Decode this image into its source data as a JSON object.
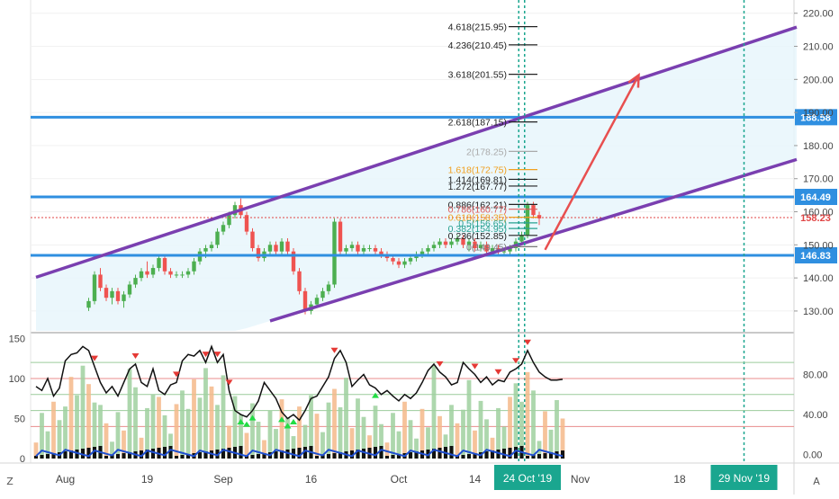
{
  "chart_data": {
    "type": "candlestick",
    "main_y_range": [
      124,
      224
    ],
    "price_ticks": [
      "220.00",
      "210.00",
      "200.00",
      "190.00",
      "180.00",
      "170.00",
      "160.00",
      "150.00",
      "140.00",
      "130.00"
    ],
    "x_labels": [
      {
        "label": "Aug",
        "day": 5
      },
      {
        "label": "19",
        "day": 19
      },
      {
        "label": "Sep",
        "day": 32
      },
      {
        "label": "16",
        "day": 47
      },
      {
        "label": "Oct",
        "day": 62
      },
      {
        "label": "14",
        "day": 75
      },
      {
        "label": "Nov",
        "day": 93
      },
      {
        "label": "18",
        "day": 110
      },
      {
        "label": "29 Nov '19",
        "day": 121,
        "highlight": true
      },
      {
        "label": "24 Oct '19",
        "day": 84,
        "highlight": true
      }
    ],
    "horizontal_lines": [
      {
        "price": 188.58,
        "label": "188.58",
        "color": "#2f8fe0"
      },
      {
        "price": 164.49,
        "label": "164.49",
        "color": "#2f8fe0"
      },
      {
        "price": 146.83,
        "label": "146.83",
        "color": "#2f8fe0"
      }
    ],
    "last_price": {
      "price": 158.23,
      "label": "158.23",
      "color": "#e04545"
    },
    "channel": {
      "upper": [
        [
          0,
          140.2
        ],
        [
          130,
          215.8
        ]
      ],
      "lower": [
        [
          40,
          127.0
        ],
        [
          130,
          175.8
        ]
      ],
      "color": "#7a3fb0"
    },
    "projection_arrow": {
      "from": [
        87,
        148.5
      ],
      "to": [
        103,
        201.3
      ],
      "color": "#e84f4f"
    },
    "vertical_lines": [
      {
        "day": 82.5,
        "color": "#1aa68f"
      },
      {
        "day": 83.5,
        "color": "#1aa68f"
      },
      {
        "day": 121,
        "color": "#1aa68f"
      }
    ],
    "fib_levels": [
      {
        "label": "4.618(215.95)",
        "price": 215.95,
        "color": "#222222"
      },
      {
        "label": "4.236(210.45)",
        "price": 210.45,
        "color": "#222222"
      },
      {
        "label": "3.618(201.55)",
        "price": 201.55,
        "color": "#222222"
      },
      {
        "label": "2.618(187.15)",
        "price": 187.15,
        "color": "#222222"
      },
      {
        "label": "2(178.25)",
        "price": 178.25,
        "color": "#aaaaaa"
      },
      {
        "label": "1.618(172.75)",
        "price": 172.75,
        "color": "#f0a020"
      },
      {
        "label": "1.414(169.81)",
        "price": 169.81,
        "color": "#222222"
      },
      {
        "label": "1.272(167.77)",
        "price": 167.77,
        "color": "#222222"
      },
      {
        "label": "0.886(162.21)",
        "price": 162.21,
        "color": "#222222"
      },
      {
        "label": "0.786(160.77)",
        "price": 160.77,
        "color": "#e05a5a"
      },
      {
        "label": "0.618(158.35)",
        "price": 158.35,
        "color": "#f0a020"
      },
      {
        "label": "0.5(156.65)",
        "price": 156.65,
        "color": "#27a090"
      },
      {
        "label": "0.382(154.95)",
        "price": 154.95,
        "color": "#27a090"
      },
      {
        "label": "0.236(152.85)",
        "price": 152.85,
        "color": "#222222"
      },
      {
        "label": "0(149.45)",
        "price": 149.45,
        "color": "#777777"
      }
    ],
    "candles": [
      [
        9,
        131,
        134,
        130,
        133
      ],
      [
        10,
        133,
        142,
        132,
        141
      ],
      [
        11,
        141,
        143,
        136,
        137
      ],
      [
        12,
        137,
        138,
        133,
        134
      ],
      [
        13,
        134,
        137,
        132,
        136
      ],
      [
        14,
        136,
        137,
        132,
        133
      ],
      [
        15,
        133,
        136,
        131,
        135
      ],
      [
        16,
        135,
        139,
        134,
        138
      ],
      [
        17,
        138,
        141,
        137,
        140
      ],
      [
        18,
        140,
        143,
        139,
        142
      ],
      [
        19,
        142,
        145,
        140,
        141
      ],
      [
        20,
        141,
        144,
        140,
        143
      ],
      [
        21,
        143,
        147,
        142,
        146
      ],
      [
        22,
        146,
        147,
        141,
        142
      ],
      [
        23,
        142,
        143,
        140,
        141
      ],
      [
        24,
        141,
        142,
        140,
        141
      ],
      [
        25,
        141,
        142,
        140,
        141
      ],
      [
        26,
        141,
        143,
        140,
        142
      ],
      [
        27,
        142,
        146,
        141,
        145
      ],
      [
        28,
        145,
        149,
        144,
        148
      ],
      [
        29,
        148,
        150,
        146,
        149
      ],
      [
        30,
        149,
        151,
        148,
        150
      ],
      [
        31,
        150,
        155,
        149,
        154
      ],
      [
        32,
        154,
        157,
        153,
        156
      ],
      [
        33,
        156,
        160,
        155,
        159
      ],
      [
        34,
        159,
        163,
        158,
        162
      ],
      [
        35,
        162,
        164,
        158,
        159
      ],
      [
        36,
        159,
        160,
        153,
        154
      ],
      [
        37,
        154,
        155,
        148,
        149
      ],
      [
        38,
        149,
        150,
        145,
        146
      ],
      [
        39,
        146,
        149,
        145,
        148
      ],
      [
        40,
        148,
        151,
        147,
        150
      ],
      [
        41,
        150,
        151,
        147,
        148
      ],
      [
        42,
        148,
        152,
        147,
        151
      ],
      [
        43,
        151,
        152,
        147,
        148
      ],
      [
        44,
        148,
        149,
        141,
        142
      ],
      [
        45,
        142,
        143,
        135,
        136
      ],
      [
        46,
        136,
        137,
        129,
        130
      ],
      [
        47,
        130,
        133,
        129,
        132
      ],
      [
        48,
        132,
        135,
        131,
        134
      ],
      [
        49,
        134,
        137,
        133,
        136
      ],
      [
        50,
        136,
        139,
        135,
        138
      ],
      [
        51,
        138,
        158,
        137,
        157
      ],
      [
        52,
        157,
        158,
        147,
        148
      ],
      [
        53,
        148,
        150,
        147,
        149
      ],
      [
        54,
        149,
        151,
        148,
        150
      ],
      [
        55,
        150,
        151,
        147,
        148
      ],
      [
        56,
        148,
        150,
        147,
        149
      ],
      [
        57,
        149,
        150,
        148,
        149
      ],
      [
        58,
        149,
        150,
        147,
        148
      ],
      [
        59,
        148,
        149,
        146,
        147
      ],
      [
        60,
        147,
        148,
        145,
        146
      ],
      [
        61,
        146,
        147,
        144,
        145
      ],
      [
        62,
        145,
        146,
        143,
        144
      ],
      [
        63,
        144,
        146,
        143,
        145
      ],
      [
        64,
        145,
        147,
        144,
        146
      ],
      [
        65,
        146,
        148,
        145,
        147
      ],
      [
        66,
        147,
        149,
        146,
        148
      ],
      [
        67,
        148,
        150,
        147,
        149
      ],
      [
        68,
        149,
        151,
        148,
        150
      ],
      [
        69,
        150,
        152,
        149,
        151
      ],
      [
        70,
        151,
        152,
        149,
        150
      ],
      [
        71,
        150,
        152,
        149,
        151
      ],
      [
        72,
        151,
        153,
        150,
        152
      ],
      [
        73,
        152,
        153,
        149,
        150
      ],
      [
        74,
        150,
        152,
        148,
        151
      ],
      [
        75,
        151,
        152,
        148,
        149
      ],
      [
        76,
        149,
        151,
        148,
        150
      ],
      [
        77,
        150,
        151,
        147,
        148
      ],
      [
        78,
        148,
        150,
        147,
        149
      ],
      [
        79,
        149,
        150,
        147,
        148
      ],
      [
        80,
        148,
        149,
        147,
        148
      ],
      [
        81,
        148,
        150,
        147,
        149
      ],
      [
        82,
        149,
        152,
        148,
        151
      ],
      [
        83,
        151,
        154,
        150,
        153
      ],
      [
        84,
        153,
        163,
        152,
        162
      ],
      [
        85,
        162,
        163,
        158,
        159
      ],
      [
        86,
        159,
        160,
        156,
        158
      ]
    ],
    "indicator_ticks": [
      "150",
      "100",
      "50",
      "0"
    ],
    "indicator_right_ticks": [
      "80.00",
      "40.00",
      "0.00"
    ],
    "indicator_levels": [
      120,
      100,
      80,
      60,
      40
    ],
    "oscillator": [
      [
        0,
        90
      ],
      [
        1,
        85
      ],
      [
        2,
        100
      ],
      [
        3,
        78
      ],
      [
        4,
        88
      ],
      [
        5,
        122
      ],
      [
        6,
        130
      ],
      [
        7,
        132
      ],
      [
        8,
        140
      ],
      [
        9,
        135
      ],
      [
        10,
        115
      ],
      [
        11,
        95
      ],
      [
        12,
        82
      ],
      [
        13,
        90
      ],
      [
        14,
        78
      ],
      [
        15,
        95
      ],
      [
        16,
        112
      ],
      [
        17,
        118
      ],
      [
        18,
        95
      ],
      [
        19,
        90
      ],
      [
        20,
        112
      ],
      [
        21,
        85
      ],
      [
        22,
        80
      ],
      [
        23,
        92
      ],
      [
        24,
        95
      ],
      [
        25,
        122
      ],
      [
        26,
        130
      ],
      [
        27,
        128
      ],
      [
        28,
        135
      ],
      [
        29,
        120
      ],
      [
        30,
        140
      ],
      [
        31,
        120
      ],
      [
        32,
        130
      ],
      [
        33,
        85
      ],
      [
        34,
        60
      ],
      [
        35,
        55
      ],
      [
        36,
        52
      ],
      [
        37,
        60
      ],
      [
        38,
        72
      ],
      [
        39,
        95
      ],
      [
        40,
        85
      ],
      [
        41,
        75
      ],
      [
        42,
        58
      ],
      [
        43,
        50
      ],
      [
        44,
        55
      ],
      [
        45,
        48
      ],
      [
        46,
        60
      ],
      [
        47,
        75
      ],
      [
        48,
        78
      ],
      [
        49,
        90
      ],
      [
        50,
        102
      ],
      [
        51,
        125
      ],
      [
        52,
        135
      ],
      [
        53,
        120
      ],
      [
        54,
        90
      ],
      [
        55,
        98
      ],
      [
        56,
        105
      ],
      [
        57,
        92
      ],
      [
        58,
        88
      ],
      [
        59,
        80
      ],
      [
        60,
        85
      ],
      [
        61,
        78
      ],
      [
        62,
        72
      ],
      [
        63,
        80
      ],
      [
        64,
        75
      ],
      [
        65,
        82
      ],
      [
        66,
        95
      ],
      [
        67,
        110
      ],
      [
        68,
        118
      ],
      [
        69,
        108
      ],
      [
        70,
        102
      ],
      [
        71,
        92
      ],
      [
        72,
        95
      ],
      [
        73,
        120
      ],
      [
        74,
        112
      ],
      [
        75,
        105
      ],
      [
        76,
        95
      ],
      [
        77,
        102
      ],
      [
        78,
        92
      ],
      [
        79,
        98
      ],
      [
        80,
        96
      ],
      [
        81,
        108
      ],
      [
        82,
        112
      ],
      [
        83,
        118
      ],
      [
        84,
        135
      ],
      [
        85,
        120
      ],
      [
        86,
        108
      ],
      [
        87,
        102
      ],
      [
        88,
        98
      ],
      [
        89,
        98
      ],
      [
        90,
        99
      ]
    ],
    "triangles_down": [
      10,
      17,
      24,
      29,
      31,
      33,
      51,
      69,
      75,
      79,
      82,
      84
    ],
    "triangles_up": [
      35,
      36,
      37,
      42,
      43,
      44,
      58
    ]
  }
}
